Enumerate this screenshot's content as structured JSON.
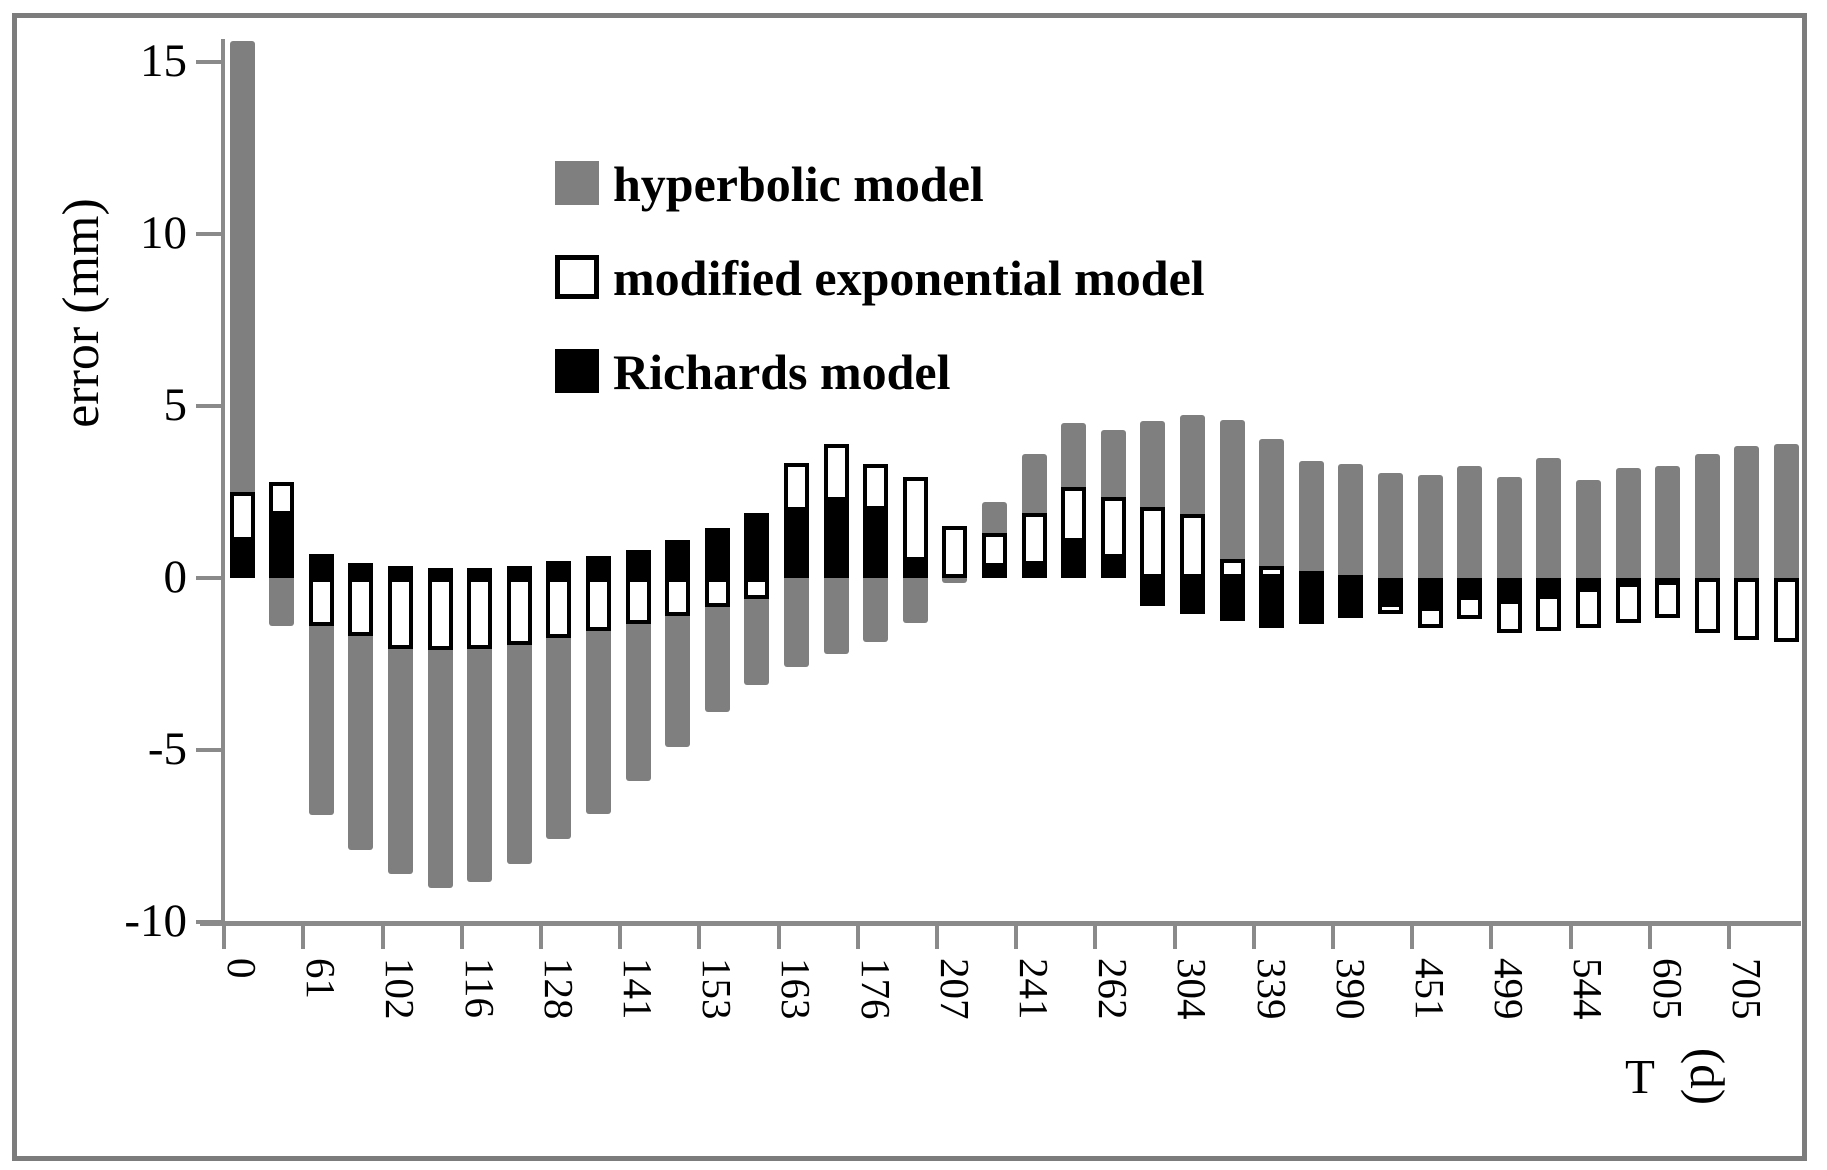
{
  "y_axis": {
    "title": "error (mm)",
    "ticks": [
      15,
      10,
      5,
      0,
      -5,
      -10
    ]
  },
  "x_axis": {
    "title_prefix": "T",
    "title_suffix": "(d)"
  },
  "legend": {
    "items": [
      {
        "id": "hyperbolic",
        "label": "hyperbolic model",
        "fill": "#7f7f7f",
        "border": "none"
      },
      {
        "id": "modified_exponential",
        "label": "modified exponential model",
        "fill": "#ffffff",
        "border": "#000000"
      },
      {
        "id": "richards",
        "label": "Richards model",
        "fill": "#000000",
        "border": "none"
      }
    ]
  },
  "chart_data": {
    "type": "bar",
    "title": "",
    "xlabel": "T (d)",
    "ylabel": "error (mm)",
    "ylim": [
      -10,
      15.6
    ],
    "grid": false,
    "legend_position": "top-center-inside",
    "x_label_interval": 2,
    "note": "Three overlapping (not stacked) bar series per category, drawn back-to-front: hyperbolic (gray), modified exponential (white with black outline), Richards (solid black). First hyperbolic bar is clipped at the top of the plot. Unlabeled categories sit between labeled ticks.",
    "categories_labeled": [
      "0",
      "61",
      "102",
      "116",
      "128",
      "141",
      "153",
      "163",
      "176",
      "207",
      "241",
      "262",
      "304",
      "339",
      "390",
      "451",
      "499",
      "544",
      "605",
      "705"
    ],
    "series": [
      {
        "name": "hyperbolic model",
        "color": "#7f7f7f"
      },
      {
        "name": "modified exponential model",
        "color": "#ffffff",
        "outline": "#000000"
      },
      {
        "name": "Richards model",
        "color": "#000000"
      }
    ],
    "bars": [
      {
        "t": "0",
        "hyperbolic": 15.6,
        "modified_exponential": 2.5,
        "richards": 1.2
      },
      {
        "t": "",
        "hyperbolic": -1.4,
        "modified_exponential": 2.8,
        "richards": 1.95
      },
      {
        "t": "61",
        "hyperbolic": -6.9,
        "modified_exponential": -1.4,
        "richards": 0.7
      },
      {
        "t": "",
        "hyperbolic": -7.9,
        "modified_exponential": -1.7,
        "richards": 0.45
      },
      {
        "t": "102",
        "hyperbolic": -8.6,
        "modified_exponential": -2.05,
        "richards": 0.35
      },
      {
        "t": "",
        "hyperbolic": -9.0,
        "modified_exponential": -2.1,
        "richards": 0.3
      },
      {
        "t": "116",
        "hyperbolic": -8.85,
        "modified_exponential": -2.05,
        "richards": 0.3
      },
      {
        "t": "",
        "hyperbolic": -8.3,
        "modified_exponential": -1.95,
        "richards": 0.35
      },
      {
        "t": "128",
        "hyperbolic": -7.6,
        "modified_exponential": -1.75,
        "richards": 0.5
      },
      {
        "t": "",
        "hyperbolic": -6.85,
        "modified_exponential": -1.55,
        "richards": 0.65
      },
      {
        "t": "141",
        "hyperbolic": -5.9,
        "modified_exponential": -1.35,
        "richards": 0.8
      },
      {
        "t": "",
        "hyperbolic": -4.9,
        "modified_exponential": -1.1,
        "richards": 1.1
      },
      {
        "t": "153",
        "hyperbolic": -3.9,
        "modified_exponential": -0.85,
        "richards": 1.45
      },
      {
        "t": "",
        "hyperbolic": -3.1,
        "modified_exponential": -0.6,
        "richards": 1.9
      },
      {
        "t": "163",
        "hyperbolic": -2.6,
        "modified_exponential": 3.35,
        "richards": 2.05
      },
      {
        "t": "",
        "hyperbolic": -2.2,
        "modified_exponential": 3.9,
        "richards": 2.35
      },
      {
        "t": "176",
        "hyperbolic": -1.85,
        "modified_exponential": 3.3,
        "richards": 2.1
      },
      {
        "t": "",
        "hyperbolic": -1.3,
        "modified_exponential": 2.95,
        "richards": 0.6
      },
      {
        "t": "207",
        "hyperbolic": -0.15,
        "modified_exponential": 1.5,
        "richards": 0.1
      },
      {
        "t": "",
        "hyperbolic": 2.2,
        "modified_exponential": 1.3,
        "richards": 0.45
      },
      {
        "t": "241",
        "hyperbolic": 3.6,
        "modified_exponential": 1.9,
        "richards": 0.5
      },
      {
        "t": "",
        "hyperbolic": 4.5,
        "modified_exponential": 2.65,
        "richards": 1.15
      },
      {
        "t": "262",
        "hyperbolic": 4.3,
        "modified_exponential": 2.35,
        "richards": 0.7
      },
      {
        "t": "",
        "hyperbolic": 4.55,
        "modified_exponential": 2.05,
        "richards": -0.8
      },
      {
        "t": "304",
        "hyperbolic": 4.75,
        "modified_exponential": 1.85,
        "richards": -1.05
      },
      {
        "t": "",
        "hyperbolic": 4.6,
        "modified_exponential": 0.55,
        "richards": -1.25
      },
      {
        "t": "339",
        "hyperbolic": 4.05,
        "modified_exponential": 0.35,
        "richards": -1.45
      },
      {
        "t": "",
        "hyperbolic": 3.4,
        "modified_exponential": 0.2,
        "richards": -1.35
      },
      {
        "t": "390",
        "hyperbolic": 3.3,
        "modified_exponential": 0.1,
        "richards": -1.15
      },
      {
        "t": "",
        "hyperbolic": 3.05,
        "modified_exponential": -1.05,
        "richards": -0.85
      },
      {
        "t": "451",
        "hyperbolic": 3.0,
        "modified_exponential": -1.45,
        "richards": -0.95
      },
      {
        "t": "",
        "hyperbolic": 3.25,
        "modified_exponential": -1.2,
        "richards": -0.65
      },
      {
        "t": "499",
        "hyperbolic": 2.95,
        "modified_exponential": -1.6,
        "richards": -0.75
      },
      {
        "t": "",
        "hyperbolic": 3.5,
        "modified_exponential": -1.55,
        "richards": -0.6
      },
      {
        "t": "544",
        "hyperbolic": 2.85,
        "modified_exponential": -1.45,
        "richards": -0.4
      },
      {
        "t": "",
        "hyperbolic": 3.2,
        "modified_exponential": -1.3,
        "richards": -0.25
      },
      {
        "t": "605",
        "hyperbolic": 3.25,
        "modified_exponential": -1.15,
        "richards": -0.2
      },
      {
        "t": "",
        "hyperbolic": 3.6,
        "modified_exponential": -1.6,
        "richards": -0.1
      },
      {
        "t": "705",
        "hyperbolic": 3.85,
        "modified_exponential": -1.8,
        "richards": -0.1
      },
      {
        "t": "",
        "hyperbolic": 3.9,
        "modified_exponential": -1.85,
        "richards": -0.1
      }
    ]
  }
}
